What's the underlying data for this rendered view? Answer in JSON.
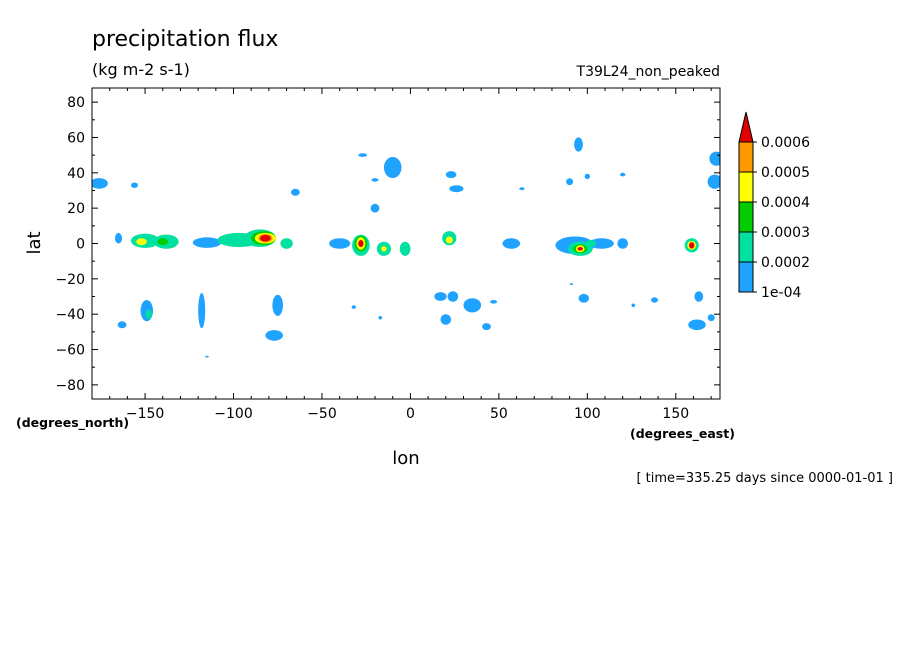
{
  "chart_data": {
    "type": "contour-map",
    "title": "precipitation flux",
    "units": "(kg m-2 s-1)",
    "dataset_label": "T39L24_non_peaked",
    "xlabel": "lon",
    "ylabel": "lat",
    "x_units": "(degrees_east)",
    "y_units": "(degrees_north)",
    "time_label": "[ time=335.25 days since 0000-01-01 ]",
    "xlim": [
      -180,
      175
    ],
    "ylim": [
      -88,
      88
    ],
    "x_ticks": [
      -150,
      -100,
      -50,
      0,
      50,
      100,
      150
    ],
    "x_tick_labels": [
      "−150",
      "−100",
      "−50",
      "0",
      "50",
      "100",
      "150"
    ],
    "y_ticks": [
      80,
      60,
      40,
      20,
      0,
      -20,
      -40,
      -60,
      -80
    ],
    "y_tick_labels": [
      "80",
      "60",
      "40",
      "20",
      "0",
      "−20",
      "−40",
      "−60",
      "−80"
    ],
    "colorbar": {
      "labels": [
        "0.0006",
        "0.0005",
        "0.0004",
        "0.0003",
        "0.0002",
        "1e-04"
      ],
      "colors": [
        "#e30000",
        "#ff9900",
        "#ffff00",
        "#00cc00",
        "#00e0a0",
        "#1fa3ff"
      ]
    },
    "cells": [
      {
        "lon": -176,
        "lat": 34,
        "level": 1,
        "rx": 5,
        "ry": 3
      },
      {
        "lon": -156,
        "lat": 33,
        "level": 1,
        "rx": 2,
        "ry": 1.5
      },
      {
        "lon": -165,
        "lat": 3,
        "level": 1,
        "rx": 2,
        "ry": 3
      },
      {
        "lon": -150,
        "lat": 1.5,
        "level": 2,
        "rx": 8,
        "ry": 4
      },
      {
        "lon": -152,
        "lat": 1,
        "level": 4,
        "rx": 3,
        "ry": 2
      },
      {
        "lon": -138,
        "lat": 1,
        "level": 2,
        "rx": 7,
        "ry": 4
      },
      {
        "lon": -140,
        "lat": 1,
        "level": 3,
        "rx": 3,
        "ry": 2
      },
      {
        "lon": -115,
        "lat": 0.5,
        "level": 1,
        "rx": 8,
        "ry": 3
      },
      {
        "lon": -97,
        "lat": 2,
        "level": 2,
        "rx": 12,
        "ry": 4
      },
      {
        "lon": -85,
        "lat": 3,
        "level": 2,
        "rx": 9,
        "ry": 5
      },
      {
        "lon": -83,
        "lat": 3,
        "level": 3,
        "rx": 7,
        "ry": 4
      },
      {
        "lon": -82,
        "lat": 3,
        "level": 4,
        "rx": 6,
        "ry": 3
      },
      {
        "lon": -82,
        "lat": 3,
        "level": 5,
        "rx": 4,
        "ry": 2.5
      },
      {
        "lon": -82,
        "lat": 3,
        "level": 6,
        "rx": 3,
        "ry": 1.8
      },
      {
        "lon": -70,
        "lat": 0,
        "level": 2,
        "rx": 3.5,
        "ry": 3
      },
      {
        "lon": -65,
        "lat": 29,
        "level": 1,
        "rx": 2.5,
        "ry": 2
      },
      {
        "lon": -40,
        "lat": 0,
        "level": 1,
        "rx": 6,
        "ry": 3
      },
      {
        "lon": -28,
        "lat": -1,
        "level": 2,
        "rx": 5,
        "ry": 6
      },
      {
        "lon": -28,
        "lat": 0,
        "level": 3,
        "rx": 3.5,
        "ry": 4.5
      },
      {
        "lon": -28,
        "lat": 0,
        "level": 4,
        "rx": 2.5,
        "ry": 3.5
      },
      {
        "lon": -28,
        "lat": 0,
        "level": 6,
        "rx": 1.5,
        "ry": 2
      },
      {
        "lon": -15,
        "lat": -3,
        "level": 2,
        "rx": 4,
        "ry": 4
      },
      {
        "lon": -15,
        "lat": -3,
        "level": 4,
        "rx": 1.5,
        "ry": 1.5
      },
      {
        "lon": -3,
        "lat": -3,
        "level": 2,
        "rx": 3,
        "ry": 4
      },
      {
        "lon": -10,
        "lat": 43,
        "level": 1,
        "rx": 5,
        "ry": 6
      },
      {
        "lon": -20,
        "lat": 20,
        "level": 1,
        "rx": 2.5,
        "ry": 2.5
      },
      {
        "lon": -20,
        "lat": 36,
        "level": 1,
        "rx": 2,
        "ry": 1
      },
      {
        "lon": -27,
        "lat": 50,
        "level": 1,
        "rx": 2.5,
        "ry": 1
      },
      {
        "lon": 22,
        "lat": 3,
        "level": 2,
        "rx": 4,
        "ry": 4
      },
      {
        "lon": 22,
        "lat": 2,
        "level": 4,
        "rx": 2,
        "ry": 2
      },
      {
        "lon": 26,
        "lat": 31,
        "level": 1,
        "rx": 4,
        "ry": 2
      },
      {
        "lon": 23,
        "lat": 39,
        "level": 1,
        "rx": 3,
        "ry": 2
      },
      {
        "lon": 57,
        "lat": 0,
        "level": 1,
        "rx": 5,
        "ry": 3
      },
      {
        "lon": 93,
        "lat": -1,
        "level": 1,
        "rx": 11,
        "ry": 5
      },
      {
        "lon": 96,
        "lat": -3,
        "level": 2,
        "rx": 7,
        "ry": 4
      },
      {
        "lon": 96,
        "lat": -3,
        "level": 3,
        "rx": 4,
        "ry": 2.5
      },
      {
        "lon": 96,
        "lat": -3,
        "level": 4,
        "rx": 2.5,
        "ry": 2
      },
      {
        "lon": 96,
        "lat": -3,
        "level": 6,
        "rx": 1.5,
        "ry": 1
      },
      {
        "lon": 108,
        "lat": 0,
        "level": 1,
        "rx": 7,
        "ry": 3
      },
      {
        "lon": 102,
        "lat": 0,
        "level": 2,
        "rx": 3,
        "ry": 2
      },
      {
        "lon": 120,
        "lat": 0,
        "level": 1,
        "rx": 3,
        "ry": 3
      },
      {
        "lon": 159,
        "lat": -1,
        "level": 2,
        "rx": 4,
        "ry": 4
      },
      {
        "lon": 159,
        "lat": -1,
        "level": 4,
        "rx": 2.5,
        "ry": 2.5
      },
      {
        "lon": 159,
        "lat": -1,
        "level": 6,
        "rx": 1.5,
        "ry": 1.8
      },
      {
        "lon": 95,
        "lat": 56,
        "level": 1,
        "rx": 2.5,
        "ry": 4
      },
      {
        "lon": 90,
        "lat": 35,
        "level": 1,
        "rx": 2,
        "ry": 2
      },
      {
        "lon": 173,
        "lat": 48,
        "level": 1,
        "rx": 4,
        "ry": 4
      },
      {
        "lon": 172,
        "lat": 35,
        "level": 1,
        "rx": 4,
        "ry": 4
      },
      {
        "lon": 120,
        "lat": 39,
        "level": 1,
        "rx": 1.5,
        "ry": 1
      },
      {
        "lon": 100,
        "lat": 38,
        "level": 1,
        "rx": 1.5,
        "ry": 1.5
      },
      {
        "lon": 63,
        "lat": 31,
        "level": 1,
        "rx": 1.5,
        "ry": 0.8
      },
      {
        "lon": -149,
        "lat": -38,
        "level": 1,
        "rx": 3.5,
        "ry": 6
      },
      {
        "lon": -148,
        "lat": -40,
        "level": 2,
        "rx": 1.8,
        "ry": 2.5
      },
      {
        "lon": -163,
        "lat": -46,
        "level": 1,
        "rx": 2.5,
        "ry": 2
      },
      {
        "lon": -118,
        "lat": -38,
        "level": 1,
        "rx": 2,
        "ry": 10
      },
      {
        "lon": -115,
        "lat": -64,
        "level": 1,
        "rx": 1,
        "ry": 0.5
      },
      {
        "lon": -75,
        "lat": -35,
        "level": 1,
        "rx": 3,
        "ry": 6
      },
      {
        "lon": -77,
        "lat": -52,
        "level": 1,
        "rx": 5,
        "ry": 3
      },
      {
        "lon": -17,
        "lat": -42,
        "level": 1,
        "rx": 1,
        "ry": 1
      },
      {
        "lon": -32,
        "lat": -36,
        "level": 1,
        "rx": 1.2,
        "ry": 1
      },
      {
        "lon": 17,
        "lat": -30,
        "level": 1,
        "rx": 3.5,
        "ry": 2.5
      },
      {
        "lon": 24,
        "lat": -30,
        "level": 1,
        "rx": 3,
        "ry": 3
      },
      {
        "lon": 35,
        "lat": -35,
        "level": 1,
        "rx": 5,
        "ry": 4
      },
      {
        "lon": 20,
        "lat": -43,
        "level": 1,
        "rx": 3,
        "ry": 3
      },
      {
        "lon": 47,
        "lat": -33,
        "level": 1,
        "rx": 2,
        "ry": 1
      },
      {
        "lon": 43,
        "lat": -47,
        "level": 1,
        "rx": 2.5,
        "ry": 2
      },
      {
        "lon": 98,
        "lat": -31,
        "level": 1,
        "rx": 3,
        "ry": 2.5
      },
      {
        "lon": 138,
        "lat": -32,
        "level": 1,
        "rx": 2,
        "ry": 1.5
      },
      {
        "lon": 126,
        "lat": -35,
        "level": 1,
        "rx": 1,
        "ry": 1
      },
      {
        "lon": 163,
        "lat": -30,
        "level": 1,
        "rx": 2.5,
        "ry": 3
      },
      {
        "lon": 162,
        "lat": -46,
        "level": 1,
        "rx": 5,
        "ry": 3
      },
      {
        "lon": 170,
        "lat": -42,
        "level": 1,
        "rx": 2,
        "ry": 2
      },
      {
        "lon": 91,
        "lat": -23,
        "level": 1,
        "rx": 1,
        "ry": 0.5
      }
    ]
  }
}
